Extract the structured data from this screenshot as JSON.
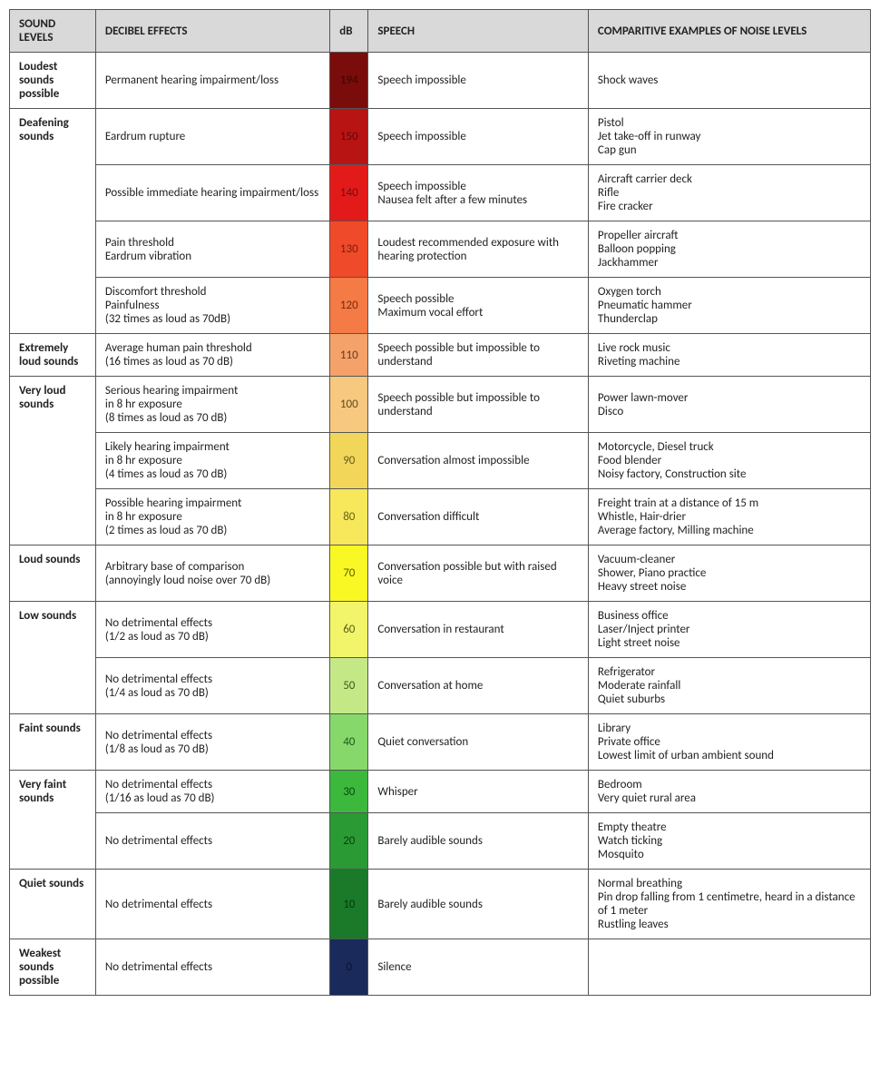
{
  "headers": {
    "sound_levels": "SOUND LEVELS",
    "decibel_effects": "DECIBEL EFFECTS",
    "db": "dB",
    "speech": "SPEECH",
    "examples": "COMPARITIVE EXAMPLES OF NOISE LEVELS"
  },
  "groups": [
    {
      "label": "Loudest sounds possible",
      "rows": [
        {
          "effects": [
            "Permanent hearing impairment/loss"
          ],
          "db": "194",
          "db_bg": "#7a0c0c",
          "db_fg": "#3a0505",
          "speech": [
            "Speech impossible"
          ],
          "examples": [
            "Shock waves"
          ]
        }
      ]
    },
    {
      "label": "Deafening sounds",
      "rows": [
        {
          "effects": [
            "Eardrum rupture"
          ],
          "db": "150",
          "db_bg": "#b81414",
          "db_fg": "#5a0a0a",
          "speech": [
            "Speech impossible"
          ],
          "examples": [
            "Pistol",
            "Jet take-off in runway",
            "Cap gun"
          ]
        },
        {
          "effects": [
            "Possible immediate hearing impairment/loss"
          ],
          "db": "140",
          "db_bg": "#e31a1a",
          "db_fg": "#6d0d0d",
          "speech": [
            "Speech impossible",
            "Nausea felt after a few minutes"
          ],
          "examples": [
            "Aircraft carrier deck",
            "Rifle",
            "Fire cracker"
          ]
        },
        {
          "effects": [
            "Pain threshold",
            "Eardrum vibration"
          ],
          "db": "130",
          "db_bg": "#ef4a2a",
          "db_fg": "#7a1f0a",
          "speech": [
            "Loudest recommended exposure with hearing protection"
          ],
          "examples": [
            "Propeller aircraft",
            "Balloon popping",
            "Jackhammer"
          ]
        },
        {
          "effects": [
            "Discomfort threshold",
            "Painfulness",
            "(32 times as loud as 70dB)"
          ],
          "db": "120",
          "db_bg": "#f47a46",
          "db_fg": "#7a2a0a",
          "speech": [
            "Speech possible",
            "Maximum vocal effort"
          ],
          "examples": [
            "Oxygen torch",
            "Pneumatic hammer",
            "Thunderclap"
          ]
        }
      ]
    },
    {
      "label": "Extremely loud sounds",
      "rows": [
        {
          "effects": [
            "Average human pain threshold",
            "(16 times as loud as 70 dB)"
          ],
          "db": "110",
          "db_bg": "#f4a26a",
          "db_fg": "#6b3a1a",
          "speech": [
            "Speech possible but impossible to understand"
          ],
          "examples": [
            "Live rock music",
            "Riveting machine"
          ]
        }
      ]
    },
    {
      "label": "Very   loud sounds",
      "rows": [
        {
          "effects": [
            "Serious hearing impairment",
            "in 8 hr exposure",
            "(8 times as loud as 70 dB)"
          ],
          "db": "100",
          "db_bg": "#f6c880",
          "db_fg": "#6b4a1a",
          "speech": [
            "Speech possible but impossible to understand"
          ],
          "examples": [
            "Power lawn-mover",
            "Disco"
          ]
        },
        {
          "effects": [
            "Likely hearing impairment",
            "in 8 hr exposure",
            "(4 times as loud as 70 dB)"
          ],
          "db": "90",
          "db_bg": "#f2d65a",
          "db_fg": "#6b5a1a",
          "speech": [
            "Conversation almost impossible"
          ],
          "examples": [
            "Motorcycle, Diesel truck",
            "Food blender",
            "Noisy factory, Construction site"
          ]
        },
        {
          "effects": [
            "Possible hearing impairment",
            "in 8 hr exposure",
            "(2 times as loud as 70 dB)"
          ],
          "db": "80",
          "db_bg": "#f6e85a",
          "db_fg": "#6b5f1a",
          "speech": [
            "Conversation difficult"
          ],
          "examples": [
            "Freight train at a distance of 15 m",
            "Whistle, Hair-drier",
            "Average factory, Milling machine"
          ]
        }
      ]
    },
    {
      "label": "Loud sounds",
      "rows": [
        {
          "effects": [
            "Arbitrary base of comparison",
            "(annoyingly loud noise over 70 dB)"
          ],
          "db": "70",
          "db_bg": "#f9f824",
          "db_fg": "#5f5f0a",
          "speech": [
            "Conversation possible but with raised voice"
          ],
          "examples": [
            "Vacuum-cleaner",
            "Shower, Piano practice",
            "Heavy street noise"
          ]
        }
      ]
    },
    {
      "label": "Low sounds",
      "rows": [
        {
          "effects": [
            "No detrimental effects",
            "(1/2 as loud as 70 dB)"
          ],
          "db": "60",
          "db_bg": "#f2f56a",
          "db_fg": "#5a5f1a",
          "speech": [
            "Conversation in restaurant"
          ],
          "examples": [
            "Business office",
            "Laser/Inject printer",
            "Light street noise"
          ]
        },
        {
          "effects": [
            "No detrimental effects",
            "(1/4 as loud as 70 dB)"
          ],
          "db": "50",
          "db_bg": "#c5e887",
          "db_fg": "#3a5a1a",
          "speech": [
            "Conversation at home"
          ],
          "examples": [
            "Refrigerator",
            "Moderate rainfall",
            "Quiet suburbs"
          ]
        }
      ]
    },
    {
      "label": "Faint sounds",
      "rows": [
        {
          "effects": [
            "No detrimental effects",
            "(1/8 as loud as 70 dB)"
          ],
          "db": "40",
          "db_bg": "#86d86a",
          "db_fg": "#1a5a1a",
          "speech": [
            "Quiet conversation"
          ],
          "examples": [
            "Library",
            "Private office",
            "Lowest limit of urban ambient sound"
          ]
        }
      ]
    },
    {
      "label": "Very   faint sounds",
      "rows": [
        {
          "effects": [
            "No detrimental effects",
            "(1/16 as loud as 70 dB)"
          ],
          "db": "30",
          "db_bg": "#3cb83c",
          "db_fg": "#0f4a0f",
          "speech": [
            "Whisper"
          ],
          "examples": [
            "Bedroom",
            "Very quiet rural area"
          ]
        },
        {
          "effects": [
            "No detrimental effects"
          ],
          "db": "20",
          "db_bg": "#2a9a34",
          "db_fg": "#0a3f0a",
          "speech": [
            "Barely audible sounds"
          ],
          "examples": [
            "Empty theatre",
            "Watch ticking",
            "Mosquito"
          ]
        }
      ]
    },
    {
      "label": "Quiet sounds",
      "rows": [
        {
          "effects": [
            "No detrimental effects"
          ],
          "db": "10",
          "db_bg": "#1a7a2a",
          "db_fg": "#063a0a",
          "speech": [
            "Barely audible sounds"
          ],
          "examples": [
            "Normal breathing",
            "Pin drop falling from 1 centimetre, heard in a distance of 1 meter",
            "Rustling leaves"
          ]
        }
      ]
    },
    {
      "label": "Weakest sounds possible",
      "rows": [
        {
          "effects": [
            "No detrimental effects"
          ],
          "db": "0",
          "db_bg": "#1a2a5a",
          "db_fg": "#0a1430",
          "speech": [
            "Silence"
          ],
          "examples": [
            ""
          ]
        }
      ]
    }
  ]
}
